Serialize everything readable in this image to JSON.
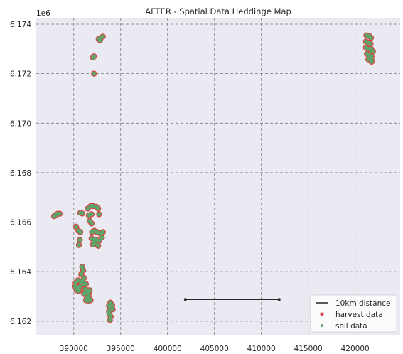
{
  "chart_data": {
    "type": "scatter",
    "title": "AFTER - Spatial Data Heddinge Map",
    "xlabel": "",
    "ylabel": "",
    "y_offset_label": "1e6",
    "xlim": [
      386000,
      424800
    ],
    "ylim": [
      6.16145,
      6.17423
    ],
    "x_ticks": [
      390000,
      395000,
      400000,
      405000,
      410000,
      415000,
      420000
    ],
    "x_tick_labels": [
      "390000",
      "395000",
      "400000",
      "405000",
      "410000",
      "415000",
      "420000"
    ],
    "y_ticks": [
      6.162,
      6.164,
      6.166,
      6.168,
      6.17,
      6.172,
      6.174
    ],
    "y_tick_labels": [
      "6.162",
      "6.164",
      "6.166",
      "6.168",
      "6.170",
      "6.172",
      "6.174"
    ],
    "grid": true,
    "legend_position": "bottom-right",
    "colors": {
      "background": "#eaeaf2",
      "grid": "#7a7a7a",
      "harvest": "#d64541",
      "soil": "#5fa56b",
      "distance": "#262626"
    },
    "distance_line": {
      "name": "10km distance",
      "x": [
        401900,
        411900
      ],
      "y": [
        6.16288,
        6.16288
      ]
    },
    "series": [
      {
        "name": "harvest data",
        "points": [
          [
            387900,
            6.16624
          ],
          [
            388100,
            6.1663
          ],
          [
            388300,
            6.16634
          ],
          [
            388500,
            6.16634
          ],
          [
            390250,
            6.16582
          ],
          [
            390500,
            6.16565
          ],
          [
            390700,
            6.1656
          ],
          [
            390650,
            6.16528
          ],
          [
            390550,
            6.16508
          ],
          [
            390700,
            6.16638
          ],
          [
            390900,
            6.16635
          ],
          [
            391500,
            6.16655
          ],
          [
            391800,
            6.16665
          ],
          [
            392100,
            6.16665
          ],
          [
            392400,
            6.16662
          ],
          [
            392600,
            6.16655
          ],
          [
            391600,
            6.16628
          ],
          [
            391900,
            6.16632
          ],
          [
            392700,
            6.16632
          ],
          [
            391700,
            6.16605
          ],
          [
            391900,
            6.16595
          ],
          [
            391950,
            6.1656
          ],
          [
            392200,
            6.16565
          ],
          [
            392500,
            6.1656
          ],
          [
            392800,
            6.16555
          ],
          [
            393100,
            6.1656
          ],
          [
            391900,
            6.16535
          ],
          [
            392150,
            6.16528
          ],
          [
            392400,
            6.1653
          ],
          [
            392700,
            6.16525
          ],
          [
            393000,
            6.16538
          ],
          [
            392050,
            6.1651
          ],
          [
            392300,
            6.16515
          ],
          [
            392600,
            6.16505
          ],
          [
            390900,
            6.1642
          ],
          [
            391000,
            6.16405
          ],
          [
            390800,
            6.1639
          ],
          [
            391100,
            6.16375
          ],
          [
            390950,
            6.16365
          ],
          [
            390200,
            6.16355
          ],
          [
            390450,
            6.16365
          ],
          [
            390750,
            6.1636
          ],
          [
            391050,
            6.1635
          ],
          [
            391300,
            6.1635
          ],
          [
            390150,
            6.1634
          ],
          [
            390400,
            6.16335
          ],
          [
            390650,
            6.1634
          ],
          [
            390300,
            6.16325
          ],
          [
            390550,
            6.16322
          ],
          [
            391200,
            6.1633
          ],
          [
            391450,
            6.16325
          ],
          [
            391700,
            6.16325
          ],
          [
            391100,
            6.1631
          ],
          [
            391350,
            6.16315
          ],
          [
            391600,
            6.1631
          ],
          [
            391400,
            6.16295
          ],
          [
            391650,
            6.16292
          ],
          [
            391300,
            6.16285
          ],
          [
            391550,
            6.16282
          ],
          [
            391800,
            6.16285
          ],
          [
            393900,
            6.16275
          ],
          [
            394100,
            6.16265
          ],
          [
            393750,
            6.16262
          ],
          [
            393950,
            6.16248
          ],
          [
            394150,
            6.16248
          ],
          [
            393750,
            6.1624
          ],
          [
            393800,
            6.16228
          ],
          [
            393950,
            6.16218
          ],
          [
            393850,
            6.16205
          ],
          [
            392650,
            6.1734
          ],
          [
            392900,
            6.17345
          ],
          [
            393100,
            6.1735
          ],
          [
            392800,
            6.17335
          ],
          [
            392050,
            6.17265
          ],
          [
            392150,
            6.1727
          ],
          [
            392150,
            6.172
          ],
          [
            421200,
            6.17355
          ],
          [
            421500,
            6.17352
          ],
          [
            421700,
            6.17345
          ],
          [
            421150,
            6.1733
          ],
          [
            421400,
            6.17325
          ],
          [
            421650,
            6.1732
          ],
          [
            421150,
            6.17305
          ],
          [
            421400,
            6.173
          ],
          [
            421700,
            6.173
          ],
          [
            421250,
            6.1728
          ],
          [
            421450,
            6.17275
          ],
          [
            421750,
            6.1729
          ],
          [
            421900,
            6.1729
          ],
          [
            421400,
            6.17258
          ],
          [
            421750,
            6.1727
          ],
          [
            421750,
            6.17255
          ],
          [
            421750,
            6.17248
          ]
        ]
      },
      {
        "name": "soil data",
        "points": [
          [
            387900,
            6.16624
          ],
          [
            388100,
            6.1663
          ],
          [
            388300,
            6.16634
          ],
          [
            388500,
            6.16634
          ],
          [
            390250,
            6.16582
          ],
          [
            390500,
            6.16565
          ],
          [
            390700,
            6.1656
          ],
          [
            390650,
            6.16528
          ],
          [
            390550,
            6.16508
          ],
          [
            390700,
            6.16638
          ],
          [
            390900,
            6.16635
          ],
          [
            391500,
            6.16655
          ],
          [
            391800,
            6.16665
          ],
          [
            392100,
            6.16665
          ],
          [
            392400,
            6.16662
          ],
          [
            392600,
            6.16655
          ],
          [
            391600,
            6.16628
          ],
          [
            391900,
            6.16632
          ],
          [
            392700,
            6.16632
          ],
          [
            391700,
            6.16605
          ],
          [
            391900,
            6.16595
          ],
          [
            391950,
            6.1656
          ],
          [
            392200,
            6.16565
          ],
          [
            392500,
            6.1656
          ],
          [
            392800,
            6.16555
          ],
          [
            393100,
            6.1656
          ],
          [
            391900,
            6.16535
          ],
          [
            392150,
            6.16528
          ],
          [
            392400,
            6.1653
          ],
          [
            392700,
            6.16525
          ],
          [
            393000,
            6.16538
          ],
          [
            392050,
            6.1651
          ],
          [
            392300,
            6.16515
          ],
          [
            392600,
            6.16505
          ],
          [
            390900,
            6.1642
          ],
          [
            391000,
            6.16405
          ],
          [
            390800,
            6.1639
          ],
          [
            391100,
            6.16375
          ],
          [
            390950,
            6.16365
          ],
          [
            390200,
            6.16355
          ],
          [
            390450,
            6.16365
          ],
          [
            390750,
            6.1636
          ],
          [
            391050,
            6.1635
          ],
          [
            391300,
            6.1635
          ],
          [
            390150,
            6.1634
          ],
          [
            390400,
            6.16335
          ],
          [
            390650,
            6.1634
          ],
          [
            390300,
            6.16325
          ],
          [
            390550,
            6.16322
          ],
          [
            391200,
            6.1633
          ],
          [
            391450,
            6.16325
          ],
          [
            391700,
            6.16325
          ],
          [
            391100,
            6.1631
          ],
          [
            391350,
            6.16315
          ],
          [
            391600,
            6.1631
          ],
          [
            391400,
            6.16295
          ],
          [
            391650,
            6.16292
          ],
          [
            391300,
            6.16285
          ],
          [
            391550,
            6.16282
          ],
          [
            391800,
            6.16285
          ],
          [
            393900,
            6.16275
          ],
          [
            394100,
            6.16265
          ],
          [
            393750,
            6.16262
          ],
          [
            393950,
            6.16248
          ],
          [
            394150,
            6.16248
          ],
          [
            393750,
            6.1624
          ],
          [
            393800,
            6.16228
          ],
          [
            393950,
            6.16218
          ],
          [
            393850,
            6.16205
          ],
          [
            392650,
            6.1734
          ],
          [
            392900,
            6.17345
          ],
          [
            393100,
            6.1735
          ],
          [
            392800,
            6.17335
          ],
          [
            392050,
            6.17265
          ],
          [
            392150,
            6.1727
          ],
          [
            392150,
            6.172
          ],
          [
            421200,
            6.17355
          ],
          [
            421500,
            6.17352
          ],
          [
            421700,
            6.17345
          ],
          [
            421150,
            6.1733
          ],
          [
            421400,
            6.17325
          ],
          [
            421650,
            6.1732
          ],
          [
            421150,
            6.17305
          ],
          [
            421400,
            6.173
          ],
          [
            421700,
            6.173
          ],
          [
            421250,
            6.1728
          ],
          [
            421450,
            6.17275
          ],
          [
            421750,
            6.1729
          ],
          [
            421900,
            6.1729
          ],
          [
            421400,
            6.17258
          ],
          [
            421750,
            6.1727
          ],
          [
            421750,
            6.17255
          ],
          [
            421750,
            6.17248
          ]
        ]
      }
    ]
  }
}
